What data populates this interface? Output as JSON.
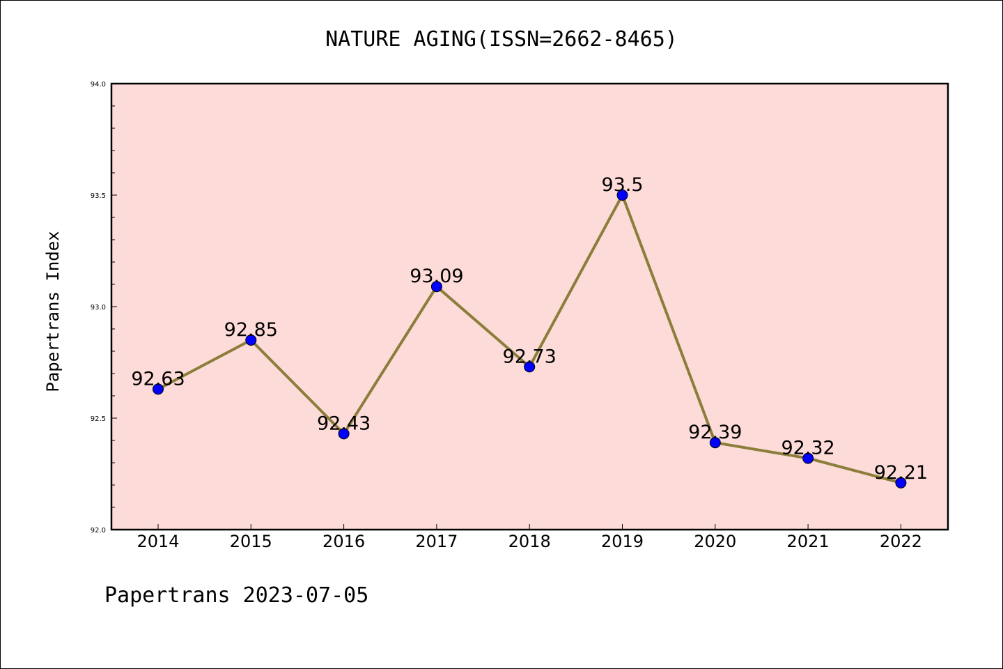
{
  "chart_data": {
    "type": "line",
    "title": "NATURE AGING(ISSN=2662-8465)",
    "xlabel": "",
    "ylabel": "Papertrans Index",
    "footer": "Papertrans 2023-07-05",
    "categories": [
      "2014",
      "2015",
      "2016",
      "2017",
      "2018",
      "2019",
      "2020",
      "2021",
      "2022"
    ],
    "values": [
      92.63,
      92.85,
      92.43,
      93.09,
      92.73,
      93.5,
      92.39,
      92.32,
      92.21
    ],
    "data_labels": [
      "92.63",
      "92.85",
      "92.43",
      "93.09",
      "92.73",
      "93.5",
      "92.39",
      "92.32",
      "92.21"
    ],
    "ylim": [
      92.0,
      94.0
    ],
    "yticks": [
      "92.0",
      "92.5",
      "93.0",
      "93.5",
      "94.0"
    ],
    "grid": false,
    "colors": {
      "plot_background": "#fddbd8",
      "line": "#8b7d3a",
      "marker": "#0000ff"
    }
  }
}
